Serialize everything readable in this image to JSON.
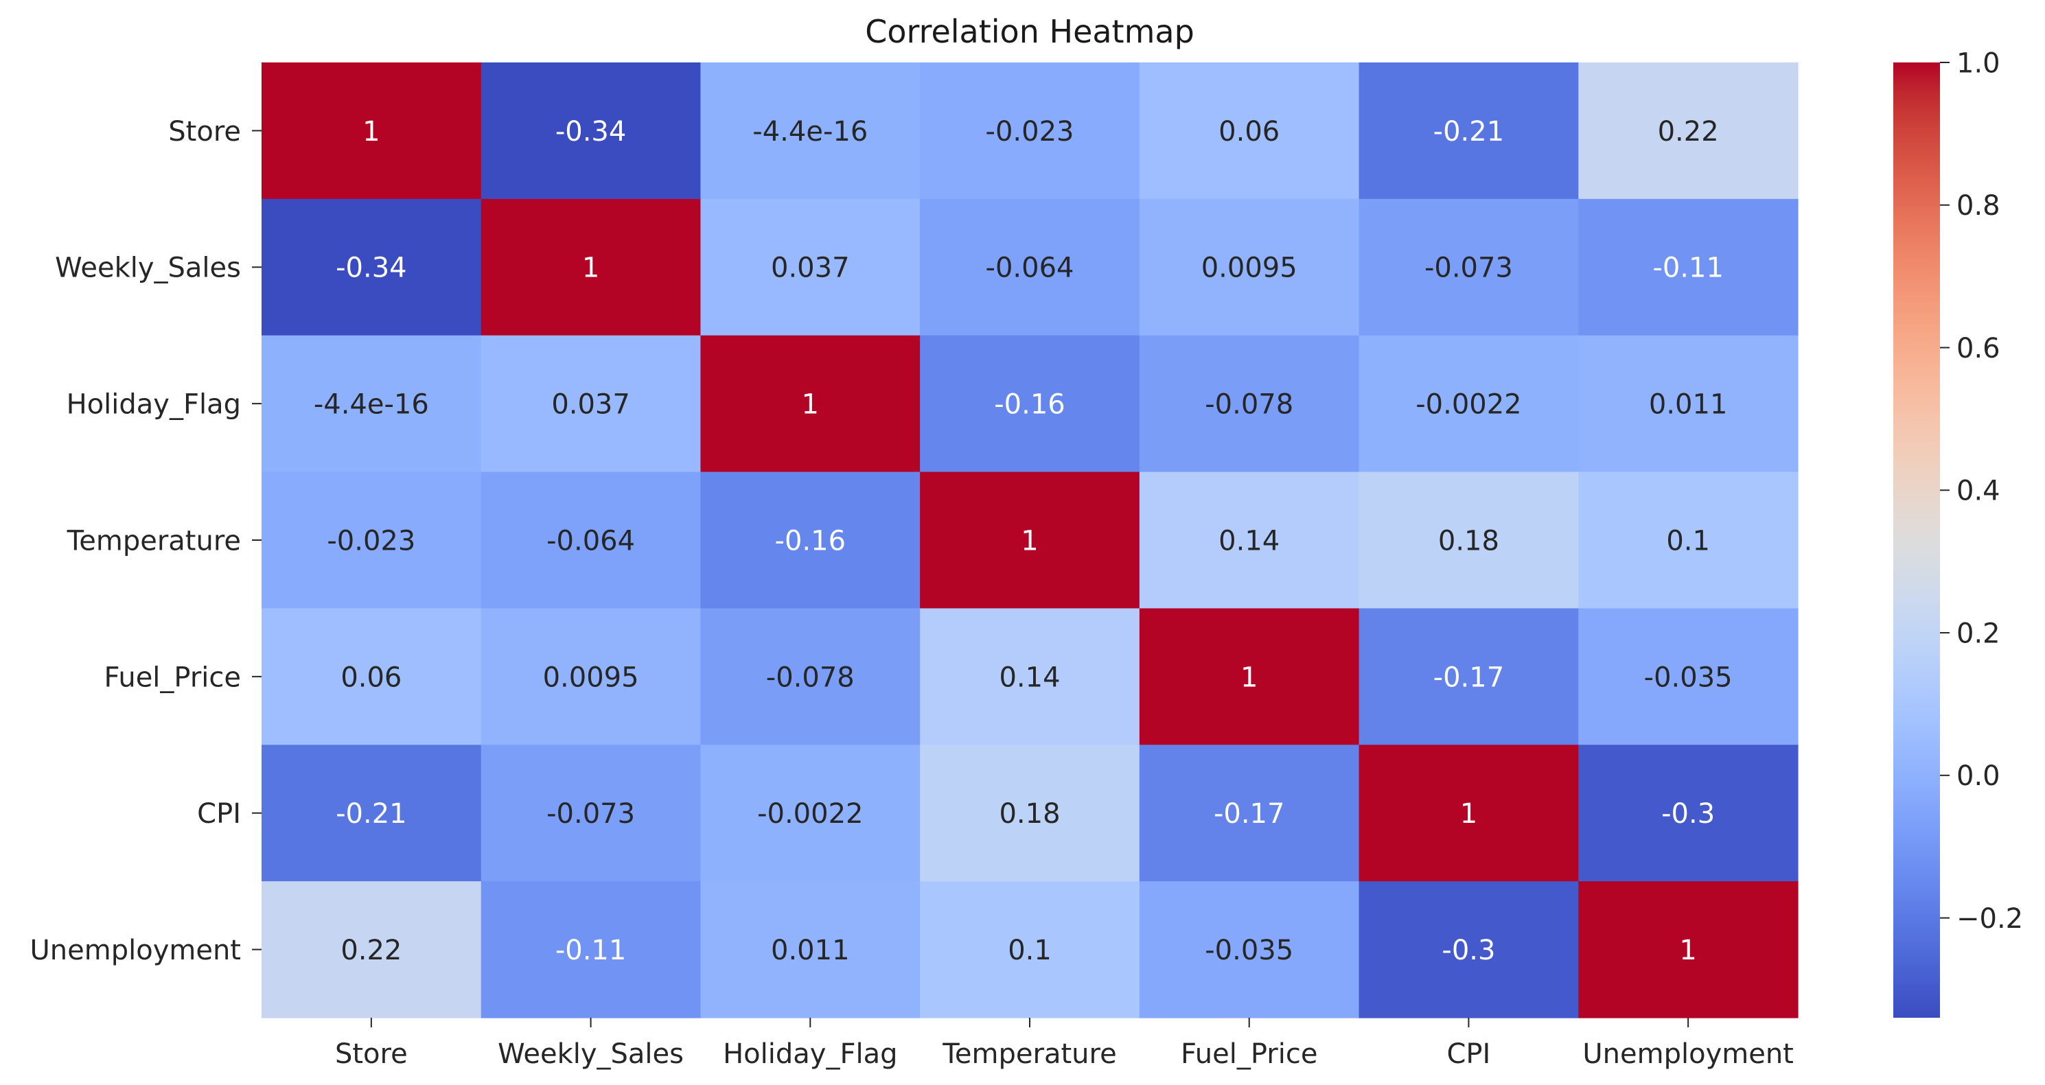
{
  "chart_data": {
    "type": "heatmap",
    "title": "Correlation Heatmap",
    "x_labels": [
      "Store",
      "Weekly_Sales",
      "Holiday_Flag",
      "Temperature",
      "Fuel_Price",
      "CPI",
      "Unemployment"
    ],
    "y_labels": [
      "Store",
      "Weekly_Sales",
      "Holiday_Flag",
      "Temperature",
      "Fuel_Price",
      "CPI",
      "Unemployment"
    ],
    "values": [
      [
        1,
        -0.34,
        -4.4e-16,
        -0.023,
        0.06,
        -0.21,
        0.22
      ],
      [
        -0.34,
        1,
        0.037,
        -0.064,
        0.0095,
        -0.073,
        -0.11
      ],
      [
        -4.4e-16,
        0.037,
        1,
        -0.16,
        -0.078,
        -0.0022,
        0.011
      ],
      [
        -0.023,
        -0.064,
        -0.16,
        1,
        0.14,
        0.18,
        0.1
      ],
      [
        0.06,
        0.0095,
        -0.078,
        0.14,
        1,
        -0.17,
        -0.035
      ],
      [
        -0.21,
        -0.073,
        -0.0022,
        0.18,
        -0.17,
        1,
        -0.3
      ],
      [
        0.22,
        -0.11,
        0.011,
        0.1,
        -0.035,
        -0.3,
        1
      ]
    ],
    "annotations": [
      [
        "1",
        "-0.34",
        "-4.4e-16",
        "-0.023",
        "0.06",
        "-0.21",
        "0.22"
      ],
      [
        "-0.34",
        "1",
        "0.037",
        "-0.064",
        "0.0095",
        "-0.073",
        "-0.11"
      ],
      [
        "-4.4e-16",
        "0.037",
        "1",
        "-0.16",
        "-0.078",
        "-0.0022",
        "0.011"
      ],
      [
        "-0.023",
        "-0.064",
        "-0.16",
        "1",
        "0.14",
        "0.18",
        "0.1"
      ],
      [
        "0.06",
        "0.0095",
        "-0.078",
        "0.14",
        "1",
        "-0.17",
        "-0.035"
      ],
      [
        "-0.21",
        "-0.073",
        "-0.0022",
        "0.18",
        "-0.17",
        "1",
        "-0.3"
      ],
      [
        "0.22",
        "-0.11",
        "0.011",
        "0.1",
        "-0.035",
        "-0.3",
        "1"
      ]
    ],
    "colormap": "coolwarm",
    "color_range": [
      -0.34,
      1.0
    ],
    "colorbar_ticks": [
      {
        "value": -0.2,
        "label": "−0.2"
      },
      {
        "value": 0.0,
        "label": "0.0"
      },
      {
        "value": 0.2,
        "label": "0.2"
      },
      {
        "value": 0.4,
        "label": "0.4"
      },
      {
        "value": 0.6,
        "label": "0.6"
      },
      {
        "value": 0.8,
        "label": "0.8"
      },
      {
        "value": 1.0,
        "label": "1.0"
      }
    ],
    "grid": false,
    "legend": "colorbar-right"
  }
}
